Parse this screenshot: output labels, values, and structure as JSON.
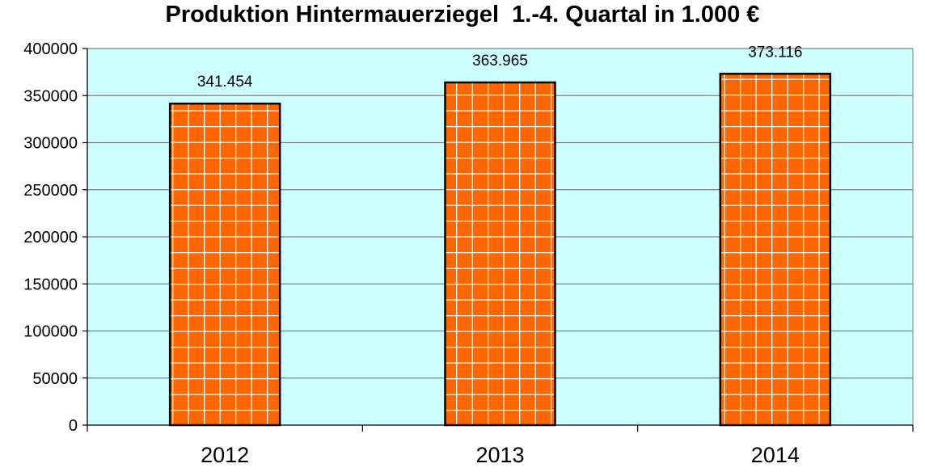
{
  "chart_data": {
    "type": "bar",
    "title": "Produktion Hintermauerziegel  1.-4. Quartal in 1.000 €",
    "xlabel": "",
    "ylabel": "",
    "categories": [
      "2012",
      "2013",
      "2014"
    ],
    "values": [
      341454,
      363965,
      373116
    ],
    "data_labels": [
      "341.454",
      "363.965",
      "373.116"
    ],
    "ylim": [
      0,
      400000
    ],
    "yticks": [
      0,
      50000,
      100000,
      150000,
      200000,
      250000,
      300000,
      350000,
      400000
    ],
    "ytick_labels": [
      "0",
      "50000",
      "100000",
      "150000",
      "200000",
      "250000",
      "300000",
      "350000",
      "400000"
    ],
    "grid": true,
    "legend": "none",
    "colors": {
      "bar_fill": "#ff6600",
      "bar_pattern_lines": "#ffffff",
      "bar_border": "#000000",
      "plot_background": "#ccffff",
      "gridline": "#808080"
    }
  }
}
